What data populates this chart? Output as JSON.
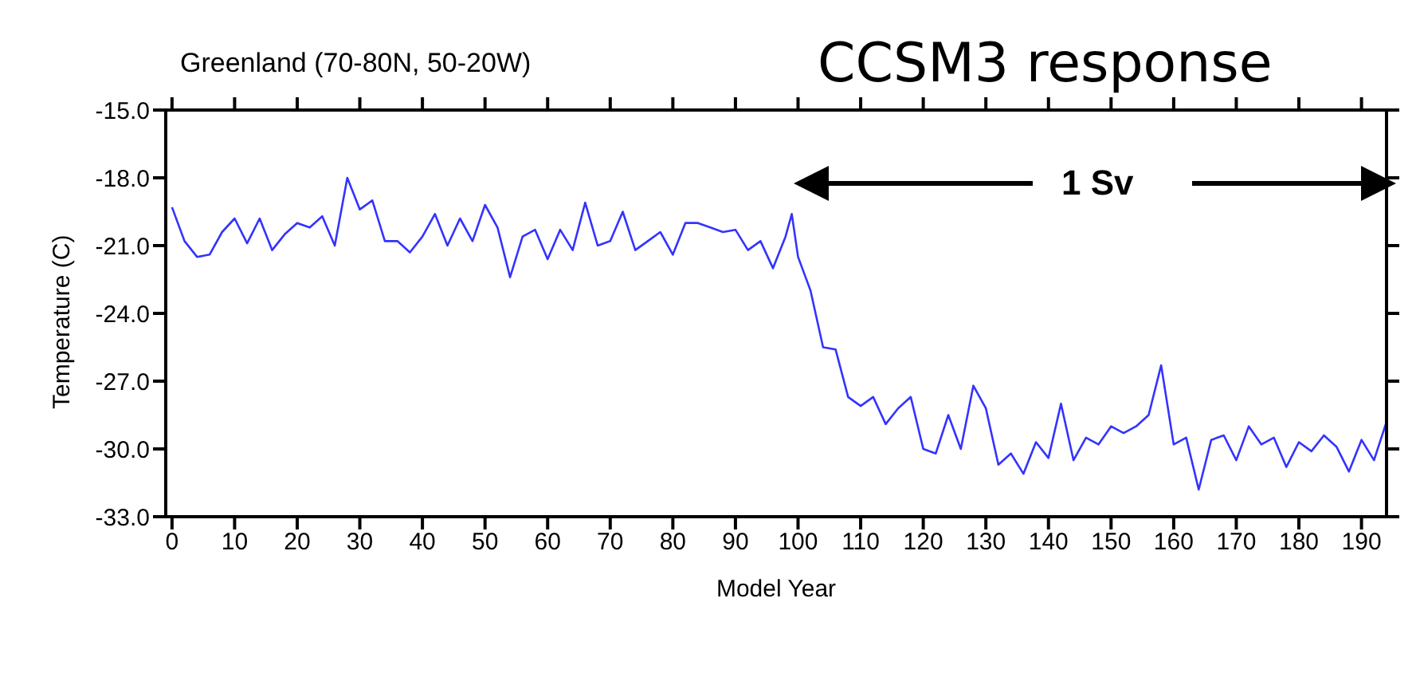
{
  "chart_data": {
    "type": "line",
    "title": "Greenland (70-80N, 50-20W)",
    "subtitle": "CCSM3 response",
    "xlabel": "Model Year",
    "ylabel": "Temperature (C)",
    "annotations": [
      "1 Sv"
    ],
    "x": [
      0,
      2,
      4,
      6,
      8,
      10,
      12,
      14,
      16,
      18,
      20,
      22,
      24,
      26,
      28,
      30,
      32,
      34,
      36,
      38,
      40,
      42,
      44,
      46,
      48,
      50,
      52,
      54,
      56,
      58,
      60,
      62,
      64,
      66,
      68,
      70,
      72,
      74,
      76,
      78,
      80,
      82,
      84,
      86,
      88,
      90,
      92,
      94,
      96,
      98,
      99,
      100,
      102,
      104,
      106,
      108,
      110,
      112,
      114,
      116,
      118,
      120,
      122,
      124,
      126,
      128,
      130,
      132,
      134,
      136,
      138,
      140,
      142,
      144,
      146,
      148,
      150,
      152,
      154,
      156,
      158,
      160,
      162,
      164,
      166,
      168,
      170,
      172,
      174,
      176,
      178,
      180,
      182,
      184,
      186,
      188,
      190,
      192,
      194
    ],
    "series": [
      {
        "color": "#3333ff",
        "values": [
          -19.3,
          -20.8,
          -21.5,
          -21.4,
          -20.4,
          -19.8,
          -20.9,
          -19.8,
          -21.2,
          -20.5,
          -20.0,
          -20.2,
          -19.7,
          -21.0,
          -18.0,
          -19.4,
          -19.0,
          -20.8,
          -20.8,
          -21.3,
          -20.6,
          -19.6,
          -21.0,
          -19.8,
          -20.8,
          -19.2,
          -20.2,
          -22.4,
          -20.6,
          -20.3,
          -21.6,
          -20.3,
          -21.2,
          -19.1,
          -21.0,
          -20.8,
          -19.5,
          -21.2,
          -20.8,
          -20.4,
          -21.4,
          -20.0,
          -20.0,
          -20.2,
          -20.4,
          -20.3,
          -21.2,
          -20.8,
          -22.0,
          -20.6,
          -19.6,
          -21.5,
          -23.0,
          -25.5,
          -25.6,
          -27.7,
          -28.1,
          -27.7,
          -28.9,
          -28.2,
          -27.7,
          -30.0,
          -30.2,
          -28.5,
          -30.0,
          -27.2,
          -28.2,
          -30.7,
          -30.2,
          -31.1,
          -29.7,
          -30.4,
          -28.0,
          -30.5,
          -29.5,
          -29.8,
          -29.0,
          -29.3,
          -29.0,
          -28.5,
          -26.3,
          -29.8,
          -29.5,
          -31.8,
          -29.6,
          -29.4,
          -30.5,
          -29.0,
          -29.8,
          -29.5,
          -30.8,
          -29.7,
          -30.1,
          -29.4,
          -29.9,
          -31.0,
          -29.6,
          -30.5,
          -28.8
        ]
      }
    ],
    "xlim": [
      -1,
      194
    ],
    "xticks": [
      0,
      10,
      20,
      30,
      40,
      50,
      60,
      70,
      80,
      90,
      100,
      110,
      120,
      130,
      140,
      150,
      160,
      170,
      180,
      190
    ],
    "ylim": [
      -33,
      -15
    ],
    "yticks": [
      {
        "value": -15,
        "label": "-15.0"
      },
      {
        "value": -18,
        "label": "-18.0"
      },
      {
        "value": -21,
        "label": "-21.0"
      },
      {
        "value": -24,
        "label": "-24.0"
      },
      {
        "value": -27,
        "label": "-27.0"
      },
      {
        "value": -30,
        "label": "-30.0"
      },
      {
        "value": -33,
        "label": "-33.0"
      }
    ],
    "grid": false,
    "legend": false,
    "marker": "none",
    "line_style": "solid"
  }
}
